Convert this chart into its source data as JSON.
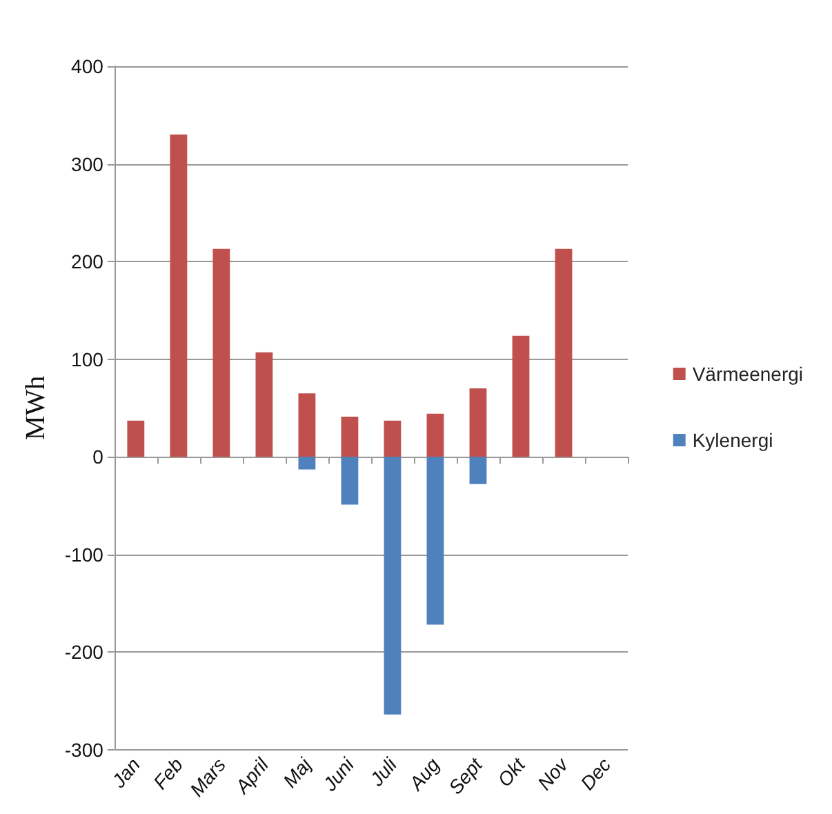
{
  "chart_data": {
    "type": "bar",
    "ylabel": "MWh",
    "categories": [
      "Jan",
      "Feb",
      "Mars",
      "April",
      "Maj",
      "Juni",
      "Juli",
      "Aug",
      "Sept",
      "Okt",
      "Nov",
      "Dec"
    ],
    "stacked": true,
    "series": [
      {
        "name": "Värmeenergi",
        "color": "#c0504d",
        "values": [
          37,
          330,
          213,
          107,
          65,
          41,
          37,
          44,
          70,
          124,
          213,
          null
        ]
      },
      {
        "name": "Kylenergi",
        "color": "#4f81bd",
        "values": [
          null,
          null,
          null,
          null,
          -13,
          -49,
          -264,
          -172,
          -28,
          null,
          null,
          null
        ]
      }
    ],
    "ylim": [
      -300,
      400
    ],
    "yticks": [
      -300,
      -200,
      -100,
      0,
      100,
      200,
      300,
      400
    ],
    "grid": "y",
    "legend": "right"
  }
}
